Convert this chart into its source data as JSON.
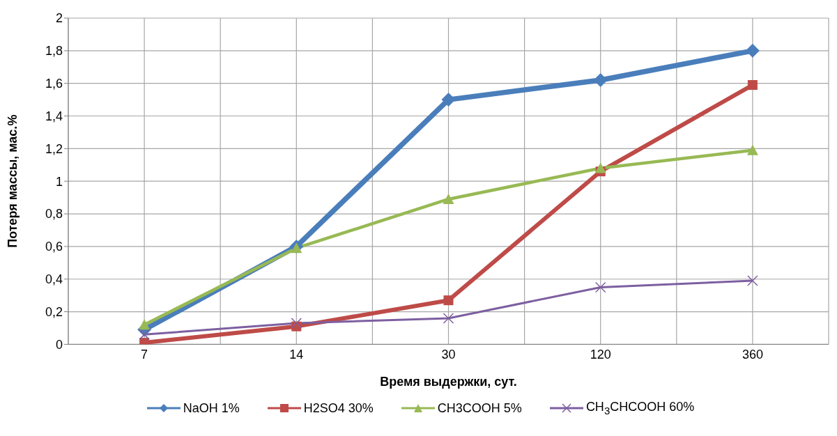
{
  "chart_data": {
    "type": "line",
    "xlabel": "Время выдержки, сут.",
    "ylabel": "Потеря массы, мас.%",
    "categories": [
      "7",
      "14",
      "30",
      "120",
      "360"
    ],
    "series": [
      {
        "name": "NaOH 1%",
        "color": "#4a7ebb",
        "marker": "diamond",
        "values": [
          0.09,
          0.6,
          1.5,
          1.62,
          1.8
        ]
      },
      {
        "name": "H2SO4 30%",
        "color": "#be4b48",
        "marker": "square",
        "values": [
          0.01,
          0.11,
          0.27,
          1.06,
          1.59
        ]
      },
      {
        "name": "CH3COOH 5%",
        "color": "#98b954",
        "marker": "triangle",
        "values": [
          0.12,
          0.59,
          0.89,
          1.08,
          1.19
        ]
      },
      {
        "name": "CH$_{3}$CHCOOH 60%",
        "color": "#7d5fa0",
        "marker": "cross",
        "values": [
          0.06,
          0.13,
          0.16,
          0.35,
          0.39
        ]
      }
    ],
    "ylim": [
      0,
      2
    ],
    "yticks": [
      0,
      {
        "value": 0.2,
        "label": "0,2"
      },
      {
        "value": 0.4,
        "label": "0,4"
      },
      {
        "value": 0.6,
        "label": "0,6"
      },
      {
        "value": 0.8,
        "label": "0,8"
      },
      1,
      {
        "value": 1.2,
        "label": "1,2"
      },
      {
        "value": 1.4,
        "label": "1,4"
      },
      {
        "value": 1.6,
        "label": "1,6"
      },
      {
        "value": 1.8,
        "label": "1,8"
      },
      2
    ],
    "grid": true,
    "legend": "bottom"
  }
}
